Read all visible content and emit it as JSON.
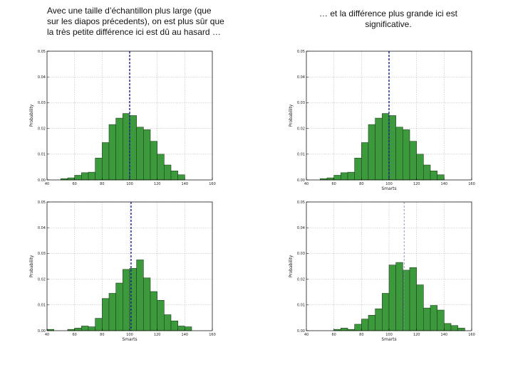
{
  "captions": {
    "left": "Avec une taille d’échantillon plus large (que sur les diapos précedents), on est plus sûr que la très petite différence ici est dû au hasard …",
    "right": "… et la différence plus grande ici est significative."
  },
  "colors": {
    "bar": "#3c9a3c",
    "bar_edge": "#1f3f1f",
    "line_dark": "#1a1aa0",
    "line_light": "#8080c8",
    "grid": "#b0b0b0"
  },
  "chart_data": [
    {
      "id": "chart-tl",
      "type": "bar",
      "bin_width": 5,
      "xlim": [
        40,
        160
      ],
      "ylim": [
        0,
        0.05
      ],
      "xticks": [
        40,
        60,
        80,
        100,
        120,
        140,
        160
      ],
      "yticks": [
        0.0,
        0.01,
        0.02,
        0.03,
        0.04,
        0.05
      ],
      "ytick_labels": [
        "0.00",
        "0.01",
        "0.02",
        "0.03",
        "0.04",
        "0.05"
      ],
      "xlabel": "",
      "ylabel": "Probability",
      "bins": [
        50,
        55,
        60,
        65,
        70,
        75,
        80,
        85,
        90,
        95,
        100,
        105,
        110,
        115,
        120,
        125,
        130,
        135
      ],
      "values": [
        0.0005,
        0.0008,
        0.0018,
        0.0028,
        0.003,
        0.0085,
        0.0145,
        0.0215,
        0.024,
        0.0258,
        0.025,
        0.0205,
        0.0195,
        0.015,
        0.01,
        0.0058,
        0.0035,
        0.002
      ],
      "vline": 100,
      "vline_style": "dark"
    },
    {
      "id": "chart-tr",
      "type": "bar",
      "bin_width": 5,
      "xlim": [
        40,
        160
      ],
      "ylim": [
        0,
        0.05
      ],
      "xticks": [
        40,
        60,
        80,
        100,
        120,
        140,
        160
      ],
      "yticks": [
        0.0,
        0.01,
        0.02,
        0.03,
        0.04,
        0.05
      ],
      "ytick_labels": [
        "0.00",
        "0.01",
        "0.02",
        "0.03",
        "0.04",
        "0.05"
      ],
      "xlabel": "Smarts",
      "ylabel": "Probability",
      "bins": [
        50,
        55,
        60,
        65,
        70,
        75,
        80,
        85,
        90,
        95,
        100,
        105,
        110,
        115,
        120,
        125,
        130,
        135
      ],
      "values": [
        0.0005,
        0.0008,
        0.0018,
        0.0028,
        0.003,
        0.0085,
        0.0145,
        0.0215,
        0.024,
        0.0258,
        0.025,
        0.0205,
        0.0195,
        0.015,
        0.01,
        0.0058,
        0.0035,
        0.002
      ],
      "vline": 100,
      "vline_style": "dark"
    },
    {
      "id": "chart-bl",
      "type": "bar",
      "bin_width": 5,
      "xlim": [
        40,
        160
      ],
      "ylim": [
        0,
        0.05
      ],
      "xticks": [
        40,
        60,
        80,
        100,
        120,
        140,
        160
      ],
      "yticks": [
        0.0,
        0.01,
        0.02,
        0.03,
        0.04,
        0.05
      ],
      "ytick_labels": [
        "0.00",
        "0.01",
        "0.02",
        "0.03",
        "0.04",
        "0.05"
      ],
      "xlabel": "Smarts",
      "ylabel": "Probability",
      "bins": [
        40,
        45,
        50,
        55,
        60,
        65,
        70,
        75,
        80,
        85,
        90,
        95,
        100,
        105,
        110,
        115,
        120,
        125,
        130,
        135,
        140
      ],
      "values": [
        0.0005,
        0.0,
        0.0,
        0.0005,
        0.001,
        0.0018,
        0.0015,
        0.0048,
        0.0125,
        0.0145,
        0.0185,
        0.0238,
        0.0242,
        0.0275,
        0.0205,
        0.0152,
        0.0118,
        0.0062,
        0.0038,
        0.0018,
        0.0015
      ],
      "vline": 101,
      "vline_style": "dark"
    },
    {
      "id": "chart-br",
      "type": "bar",
      "bin_width": 5,
      "xlim": [
        40,
        160
      ],
      "ylim": [
        0,
        0.05
      ],
      "xticks": [
        40,
        60,
        80,
        100,
        120,
        140,
        160
      ],
      "yticks": [
        0.0,
        0.01,
        0.02,
        0.03,
        0.04,
        0.05
      ],
      "ytick_labels": [
        "0.00",
        "0.01",
        "0.02",
        "0.03",
        "0.04",
        "0.05"
      ],
      "xlabel": "Smarts",
      "ylabel": "Probability",
      "bins": [
        60,
        65,
        70,
        75,
        80,
        85,
        90,
        95,
        100,
        105,
        110,
        115,
        120,
        125,
        130,
        135,
        140,
        145,
        150
      ],
      "values": [
        0.0005,
        0.001,
        0.0005,
        0.0025,
        0.0045,
        0.006,
        0.0085,
        0.0145,
        0.0255,
        0.0265,
        0.0235,
        0.0245,
        0.0178,
        0.0088,
        0.0098,
        0.008,
        0.0028,
        0.002,
        0.001
      ],
      "vline": 111,
      "vline_style": "light"
    }
  ]
}
